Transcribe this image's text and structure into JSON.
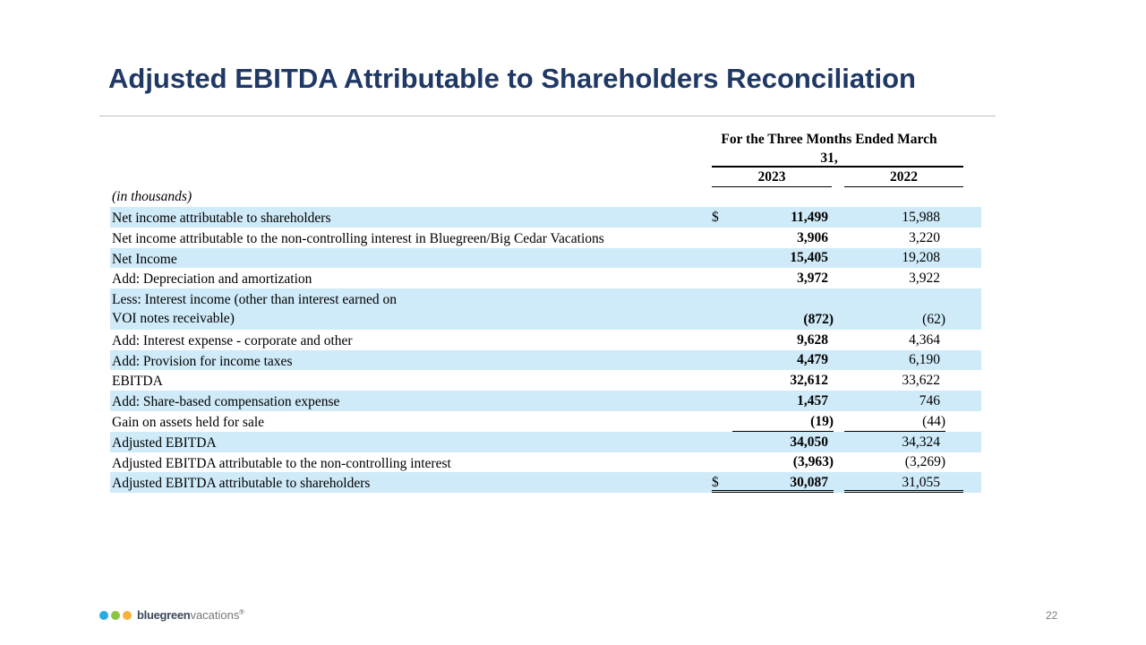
{
  "slide": {
    "title": "Adjusted EBITDA Attributable to Shareholders Reconciliation",
    "page_number": "22"
  },
  "table": {
    "period_header": "For the Three Months Ended March 31,",
    "year_2023": "2023",
    "year_2022": "2022",
    "units_note": "(in thousands)",
    "currency_symbol": "$",
    "rows": [
      {
        "label": "Net income attributable to shareholders",
        "v2023": "11,499",
        "v2022": "15,988"
      },
      {
        "label": "Net income attributable to the non-controlling interest in Bluegreen/Big Cedar Vacations",
        "v2023": "3,906",
        "v2022": "3,220"
      },
      {
        "label": "Net Income",
        "v2023": "15,405",
        "v2022": "19,208"
      },
      {
        "label": "Add: Depreciation and amortization",
        "v2023": "3,972",
        "v2022": "3,922"
      },
      {
        "label_line1": "Less: Interest income (other than interest earned on",
        "label_line2": "VOI notes receivable)",
        "v2023": "(872)",
        "v2022": "(62)"
      },
      {
        "label": "Add: Interest expense - corporate and other",
        "v2023": "9,628",
        "v2022": "4,364"
      },
      {
        "label": "Add: Provision for income taxes",
        "v2023": "4,479",
        "v2022": "6,190"
      },
      {
        "label": "EBITDA",
        "v2023": "32,612",
        "v2022": "33,622"
      },
      {
        "label": "Add: Share-based compensation expense",
        "v2023": "1,457",
        "v2022": "746"
      },
      {
        "label": "Gain on assets held for sale",
        "v2023": "(19)",
        "v2022": "(44)"
      },
      {
        "label": "Adjusted EBITDA",
        "v2023": "34,050",
        "v2022": "34,324"
      },
      {
        "label": "Adjusted EBITDA attributable to the non-controlling interest",
        "v2023": "(3,963)",
        "v2022": "(3,269)"
      },
      {
        "label": "Adjusted EBITDA attributable to shareholders",
        "v2023": "30,087",
        "v2022": "31,055"
      }
    ]
  },
  "logo": {
    "wordmark_bold": "bluegreen",
    "wordmark_light": "vacations",
    "trademark": "®",
    "dot_colors": [
      "#29abe2",
      "#8cc63f",
      "#fbb03b"
    ]
  },
  "colors": {
    "title": "#1f3864",
    "row_shade": "#cfeaf8"
  }
}
